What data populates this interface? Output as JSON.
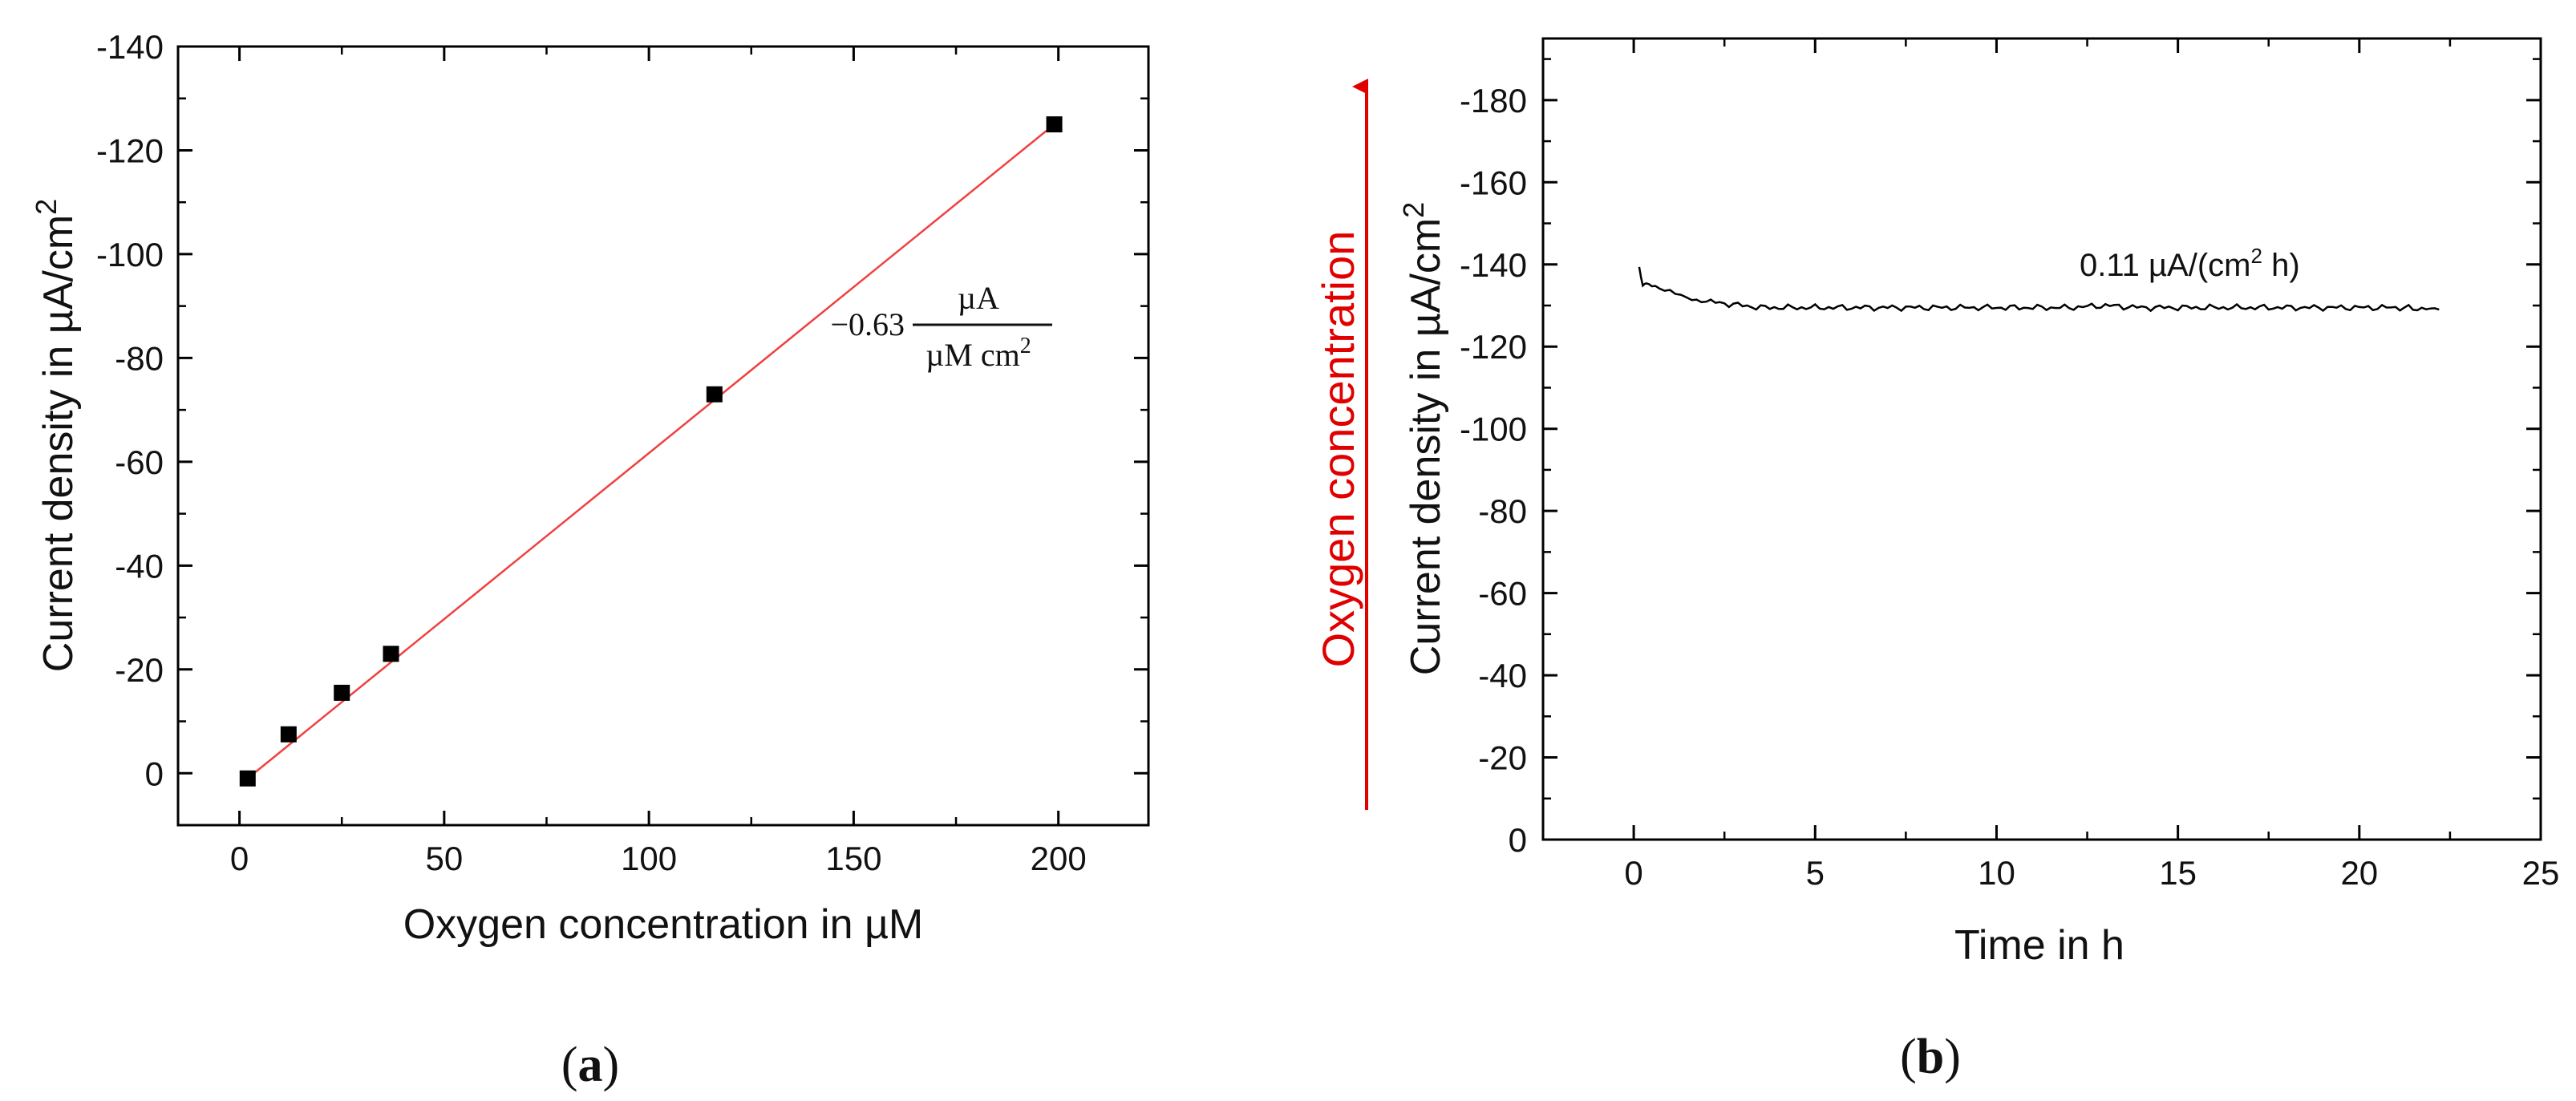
{
  "chart_data": [
    {
      "panel": "(a)",
      "type": "scatter",
      "xlabel": "Oxygen concentration in µM",
      "ylabel_main": "Current density in µA/cm",
      "ylabel_sup": "2",
      "xlim": [
        -15,
        222
      ],
      "ylim": [
        10,
        -140
      ],
      "x_ticks": [
        0,
        50,
        100,
        150,
        200
      ],
      "y_ticks": [
        0,
        -20,
        -40,
        -60,
        -80,
        -100,
        -120,
        -140
      ],
      "x_tick_labels": [
        "0",
        "50",
        "100",
        "150",
        "200"
      ],
      "y_tick_labels": [
        "0",
        "-20",
        "-40",
        "-60",
        "-80",
        "-100",
        "-120",
        "-140"
      ],
      "points": {
        "x": [
          2,
          12,
          25,
          37,
          116,
          199
        ],
        "y": [
          1,
          -7.5,
          -15.5,
          -23,
          -73,
          -125
        ]
      },
      "fit": {
        "x": [
          2,
          199
        ],
        "y": [
          1,
          -125
        ],
        "color": "#f04040"
      },
      "marker_color": "#000000",
      "annotation": {
        "prefix": "−0.63",
        "numerator": "µA",
        "denominator": "µM cm",
        "denominator_sup": "2"
      },
      "grid": false
    },
    {
      "panel": "(b)",
      "type": "line",
      "xlabel": "Time in h",
      "ylabel_main": "Current density in µA/cm",
      "ylabel_sup": "2",
      "side_label": "Oxygen concentration",
      "side_label_color": "#e00000",
      "xlim": [
        -2.5,
        25
      ],
      "ylim": [
        0,
        -195
      ],
      "x_ticks": [
        0,
        5,
        10,
        15,
        20,
        25
      ],
      "y_ticks": [
        0,
        -20,
        -40,
        -60,
        -80,
        -100,
        -120,
        -140,
        -160,
        -180
      ],
      "x_tick_labels": [
        "0",
        "5",
        "10",
        "15",
        "20",
        "25"
      ],
      "y_tick_labels": [
        "0",
        "-20",
        "-40",
        "-60",
        "-80",
        "-100",
        "-120",
        "-140",
        "-160",
        "-180"
      ],
      "series": [
        {
          "x": [
            0.15,
            0.25,
            0.35,
            0.5,
            0.7,
            1.0,
            1.3,
            1.6,
            2.0,
            2.5,
            3.0,
            3.5,
            4.0,
            5.0,
            6.0,
            7.0,
            8.0,
            9.0,
            10.0,
            11.0,
            12.0,
            13.0,
            14.0,
            15.0,
            16.0,
            17.0,
            18.0,
            19.0,
            20.0,
            21.0,
            22.2
          ],
          "y": [
            -139.5,
            -134.5,
            -135.5,
            -135,
            -134,
            -133.5,
            -132.5,
            -131.5,
            -131,
            -130.5,
            -130,
            -129.5,
            -129.5,
            -129.5,
            -129.5,
            -129.5,
            -129.5,
            -129.5,
            -129.5,
            -129.5,
            -129.5,
            -130,
            -129.5,
            -129.5,
            -129.5,
            -129.5,
            -129.5,
            -129.5,
            -129.5,
            -129.5,
            -129
          ]
        }
      ],
      "line_color": "#000000",
      "annotation": {
        "main": "0.11 µA/(cm",
        "sup": "2",
        "tail": " h)"
      },
      "grid": false
    }
  ]
}
